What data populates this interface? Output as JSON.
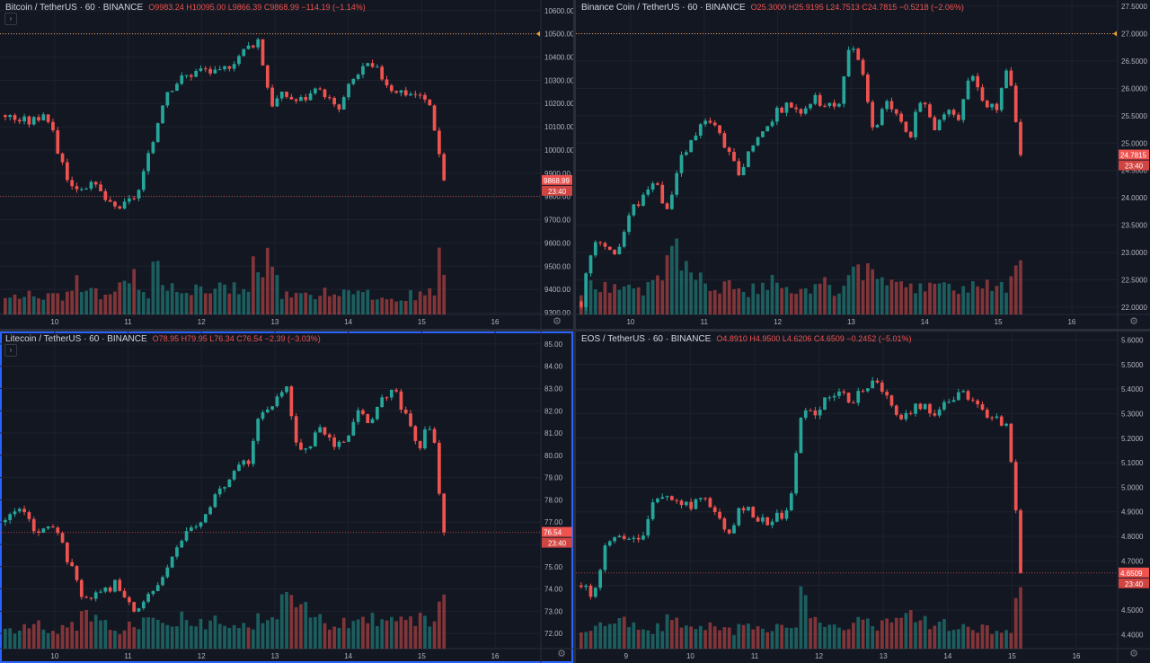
{
  "colors": {
    "up": "#26a69a",
    "down": "#ef5350",
    "bg": "#131722",
    "grid": "#1e222d",
    "axis": "#2a2e39",
    "text": "#b2b5be",
    "active_border": "#2962ff"
  },
  "chart_data": [
    {
      "type": "candlestick",
      "header": {
        "name": "Bitcoin / TetherUS · 60 · BINANCE",
        "ohlc": "O9983.24  H10095.00  L9866.39  C9868.99  −114.19 (−1.14%)"
      },
      "yticks": [
        "10600.00",
        "10500.00",
        "10400.00",
        "10300.00",
        "10200.00",
        "10100.00",
        "10000.00",
        "9900.00",
        "9800.00",
        "9700.00",
        "9600.00",
        "9500.00",
        "9400.00",
        "9300.00"
      ],
      "ylim": [
        9300,
        10630
      ],
      "xticks": [
        "10",
        "11",
        "12",
        "13",
        "14",
        "15",
        "16"
      ],
      "price_label": "9868.99",
      "countdown": "23:40",
      "ref_line": 10500,
      "low_line": 9800,
      "last": 9868.99,
      "path": [
        10150,
        10130,
        10120,
        10170,
        9990,
        9840,
        9850,
        9830,
        9750,
        9760,
        9820,
        10010,
        10250,
        10300,
        10330,
        10350,
        10320,
        10380,
        10430,
        10480,
        10200,
        10240,
        10210,
        10240,
        10250,
        10160,
        10290,
        10360,
        10340,
        10270,
        10250,
        10240,
        10190,
        9870
      ],
      "volume_pattern": [
        0.2,
        0.25,
        0.18,
        0.3,
        0.22,
        0.35,
        0.28,
        0.2,
        0.3,
        0.45,
        0.25,
        0.8,
        0.35,
        0.25,
        0.3,
        0.22,
        0.28,
        0.32,
        0.25,
        0.55,
        0.6,
        0.25,
        0.22,
        0.2,
        0.28,
        0.25,
        0.3,
        0.22,
        0.2,
        0.18,
        0.2,
        0.22,
        0.25,
        0.6
      ]
    },
    {
      "type": "candlestick",
      "header": {
        "name": "Binance Coin / TetherUS · 60 · BINANCE",
        "ohlc": "O25.3000  H25.9195  L24.7513  C24.7815  −0.5218 (−2.06%)"
      },
      "yticks": [
        "27.5000",
        "27.0000",
        "26.5000",
        "26.0000",
        "25.5000",
        "25.0000",
        "24.5000",
        "24.0000",
        "23.5000",
        "23.0000",
        "22.5000",
        "22.0000"
      ],
      "ylim": [
        21.9,
        27.55
      ],
      "xticks": [
        "10",
        "11",
        "12",
        "13",
        "14",
        "15",
        "16"
      ],
      "price_label": "24.7815",
      "countdown": "23:40",
      "ref_line": 27.0,
      "low_line": null,
      "last": 24.7815,
      "path": [
        22.1,
        23.3,
        23.1,
        23.0,
        23.7,
        24.0,
        24.4,
        23.7,
        24.6,
        25.0,
        25.4,
        25.3,
        24.8,
        24.4,
        25.0,
        25.2,
        25.6,
        25.7,
        25.6,
        25.8,
        25.7,
        25.6,
        26.8,
        26.4,
        25.1,
        25.8,
        25.4,
        25.2,
        25.9,
        25.3,
        25.6,
        25.5,
        26.3,
        25.8,
        25.6,
        26.4,
        24.8
      ],
      "volume_pattern": [
        0.3,
        0.35,
        0.3,
        0.28,
        0.32,
        0.3,
        0.35,
        0.9,
        0.55,
        0.4,
        0.35,
        0.3,
        0.3,
        0.28,
        0.3,
        0.35,
        0.32,
        0.3,
        0.28,
        0.32,
        0.35,
        0.3,
        0.5,
        0.45,
        0.4,
        0.35,
        0.3,
        0.3,
        0.32,
        0.3,
        0.35,
        0.32,
        0.3,
        0.32,
        0.35,
        0.35,
        0.5
      ]
    },
    {
      "type": "candlestick",
      "header": {
        "name": "Litecoin / TetherUS · 60 · BINANCE",
        "ohlc": "O78.95  H79.95  L76.34  C76.54  −2.39 (−3.03%)"
      },
      "yticks": [
        "85.00",
        "84.00",
        "83.00",
        "82.00",
        "81.00",
        "80.00",
        "79.00",
        "78.00",
        "77.00",
        "76.00",
        "75.00",
        "74.00",
        "73.00",
        "72.00"
      ],
      "ylim": [
        71.4,
        85.4
      ],
      "xticks": [
        "10",
        "11",
        "12",
        "13",
        "14",
        "15",
        "16"
      ],
      "price_label": "76.54",
      "countdown": "23:40",
      "ref_line": null,
      "low_line": 76.54,
      "last": 76.54,
      "path": [
        77.0,
        77.5,
        77.0,
        76.5,
        76.8,
        75.5,
        74.0,
        73.5,
        74.0,
        74.2,
        73.5,
        73.0,
        73.8,
        74.5,
        76.0,
        76.5,
        76.8,
        78.0,
        78.5,
        79.5,
        79.8,
        82.0,
        82.0,
        83.5,
        80.0,
        80.5,
        81.2,
        80.5,
        80.8,
        82.0,
        81.5,
        82.5,
        83.0,
        81.5,
        80.5,
        81.5,
        76.5
      ],
      "volume_pattern": [
        0.2,
        0.22,
        0.25,
        0.2,
        0.22,
        0.28,
        0.35,
        0.3,
        0.25,
        0.22,
        0.25,
        0.3,
        0.28,
        0.25,
        0.35,
        0.3,
        0.28,
        0.32,
        0.3,
        0.28,
        0.3,
        0.35,
        0.4,
        0.5,
        0.55,
        0.45,
        0.35,
        0.3,
        0.32,
        0.3,
        0.35,
        0.3,
        0.28,
        0.3,
        0.32,
        0.3,
        0.55
      ]
    },
    {
      "type": "candlestick",
      "header": {
        "name": "EOS / TetherUS · 60 · BINANCE",
        "ohlc": "O4.8910  H4.9500  L4.6206  C4.6509  −0.2452 (−5.01%)"
      },
      "yticks": [
        "5.6000",
        "5.5000",
        "5.4000",
        "5.3000",
        "5.2000",
        "5.1000",
        "5.0000",
        "4.9000",
        "4.8000",
        "4.7000",
        "4.6000",
        "4.5000",
        "4.4000"
      ],
      "ylim": [
        4.35,
        5.62
      ],
      "xticks": [
        "9",
        "10",
        "11",
        "12",
        "13",
        "14",
        "15",
        "16"
      ],
      "price_label": "4.6509",
      "countdown": "23:40",
      "ref_line": null,
      "low_line": 4.6509,
      "last": 4.6509,
      "path": [
        4.6,
        4.55,
        4.75,
        4.82,
        4.8,
        4.78,
        4.95,
        4.97,
        4.95,
        4.93,
        4.98,
        4.88,
        4.82,
        4.9,
        4.9,
        4.85,
        4.88,
        4.9,
        5.3,
        5.3,
        5.35,
        5.4,
        5.35,
        5.4,
        5.42,
        5.4,
        5.25,
        5.3,
        5.35,
        5.3,
        5.35,
        5.38,
        5.35,
        5.3,
        5.28,
        5.25,
        4.65
      ],
      "volume_pattern": [
        0.2,
        0.25,
        0.35,
        0.3,
        0.25,
        0.22,
        0.25,
        0.3,
        0.22,
        0.2,
        0.25,
        0.22,
        0.2,
        0.22,
        0.25,
        0.2,
        0.22,
        0.25,
        0.55,
        0.3,
        0.25,
        0.28,
        0.25,
        0.3,
        0.25,
        0.28,
        0.35,
        0.4,
        0.3,
        0.25,
        0.28,
        0.25,
        0.22,
        0.22,
        0.2,
        0.22,
        0.7
      ]
    }
  ]
}
